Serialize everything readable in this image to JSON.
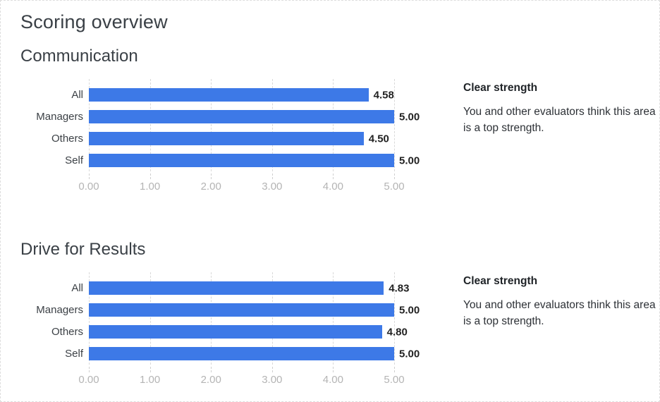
{
  "page": {
    "title": "Scoring overview"
  },
  "colors": {
    "bar": "#3d79e7",
    "grid": "#d9d9d9",
    "axis_label": "#b4b4b4",
    "heading": "#3a4046",
    "value_label": "#222222"
  },
  "sections": [
    {
      "title": "Communication",
      "rating_label": "Clear strength",
      "rating_description": "You and other evaluators think this area is a top strength."
    },
    {
      "title": "Drive for Results",
      "rating_label": "Clear strength",
      "rating_description": "You and other evaluators think this area is a top strength."
    }
  ],
  "chart_data": [
    {
      "type": "bar",
      "orientation": "horizontal",
      "title": "Communication",
      "categories": [
        "All",
        "Managers",
        "Others",
        "Self"
      ],
      "values": [
        4.58,
        5.0,
        4.5,
        5.0
      ],
      "value_labels": [
        "4.58",
        "5.00",
        "4.50",
        "5.00"
      ],
      "xlim": [
        0,
        5
      ],
      "x_ticks": [
        "0.00",
        "1.00",
        "2.00",
        "3.00",
        "4.00",
        "5.00"
      ],
      "grid": "dashed-vertical",
      "legend": "none"
    },
    {
      "type": "bar",
      "orientation": "horizontal",
      "title": "Drive for Results",
      "categories": [
        "All",
        "Managers",
        "Others",
        "Self"
      ],
      "values": [
        4.83,
        5.0,
        4.8,
        5.0
      ],
      "value_labels": [
        "4.83",
        "5.00",
        "4.80",
        "5.00"
      ],
      "xlim": [
        0,
        5
      ],
      "x_ticks": [
        "0.00",
        "1.00",
        "2.00",
        "3.00",
        "4.00",
        "5.00"
      ],
      "grid": "dashed-vertical",
      "legend": "none"
    }
  ]
}
